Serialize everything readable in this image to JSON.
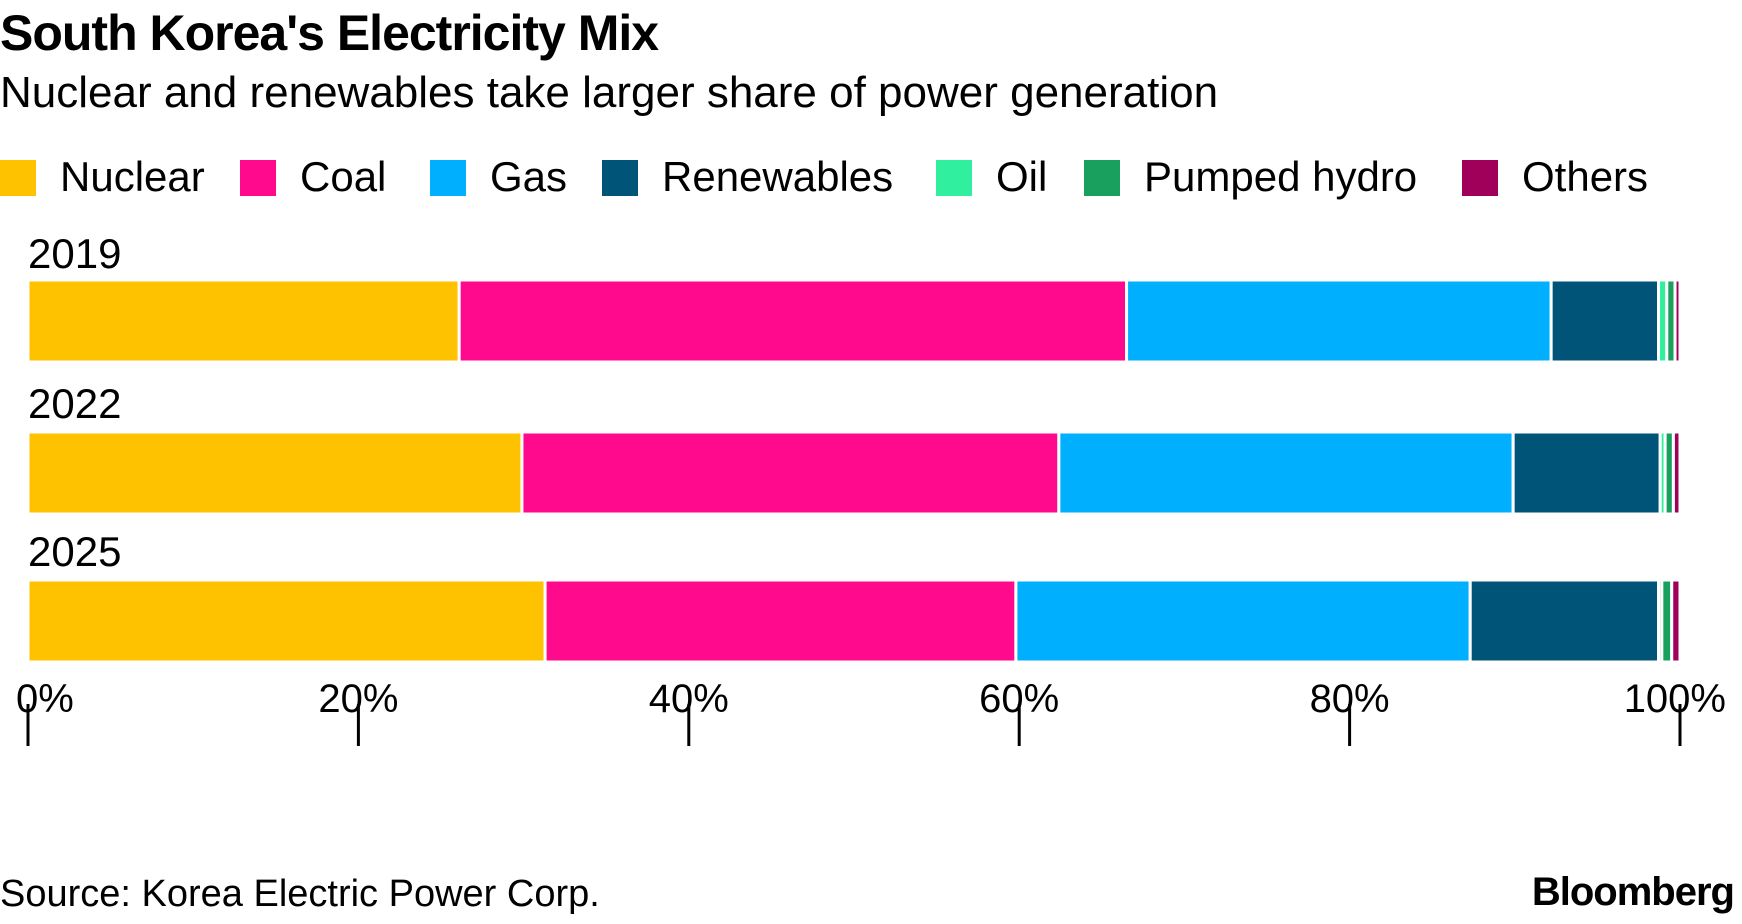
{
  "title": "South Korea's Electricity Mix",
  "subtitle": "Nuclear and renewables take larger share of power generation",
  "legend": [
    {
      "label": "Nuclear",
      "color": "#FFC200"
    },
    {
      "label": "Coal",
      "color": "#FF0A8C"
    },
    {
      "label": "Gas",
      "color": "#00B0FF"
    },
    {
      "label": "Renewables",
      "color": "#005478"
    },
    {
      "label": "Oil",
      "color": "#30F0A0"
    },
    {
      "label": "Pumped hydro",
      "color": "#1AA05E"
    },
    {
      "label": "Others",
      "color": "#A0005A"
    }
  ],
  "source": "Source: Korea Electric Power Corp.",
  "brand": "Bloomberg",
  "chart_data": {
    "type": "bar",
    "orientation": "horizontal",
    "stacked": true,
    "categories": [
      "2019",
      "2022",
      "2025"
    ],
    "series": [
      {
        "name": "Nuclear",
        "color": "#FFC200",
        "values": [
          26.1,
          29.9,
          31.3
        ]
      },
      {
        "name": "Coal",
        "color": "#FF0A8C",
        "values": [
          40.4,
          32.5,
          28.5
        ]
      },
      {
        "name": "Gas",
        "color": "#00B0FF",
        "values": [
          25.7,
          27.5,
          27.5
        ]
      },
      {
        "name": "Renewables",
        "color": "#005478",
        "values": [
          6.5,
          8.9,
          11.4
        ]
      },
      {
        "name": "Oil",
        "color": "#30F0A0",
        "values": [
          0.5,
          0.3,
          0.2
        ]
      },
      {
        "name": "Pumped hydro",
        "color": "#1AA05E",
        "values": [
          0.5,
          0.5,
          0.6
        ]
      },
      {
        "name": "Others",
        "color": "#A0005A",
        "values": [
          0.3,
          0.4,
          0.5
        ]
      }
    ],
    "xlim": [
      0,
      100
    ],
    "xticks": [
      "0%",
      "20%",
      "40%",
      "60%",
      "80%",
      "100%"
    ],
    "tick_values": [
      0,
      20,
      40,
      60,
      80,
      100
    ],
    "grid": false,
    "legend_position": "top"
  }
}
